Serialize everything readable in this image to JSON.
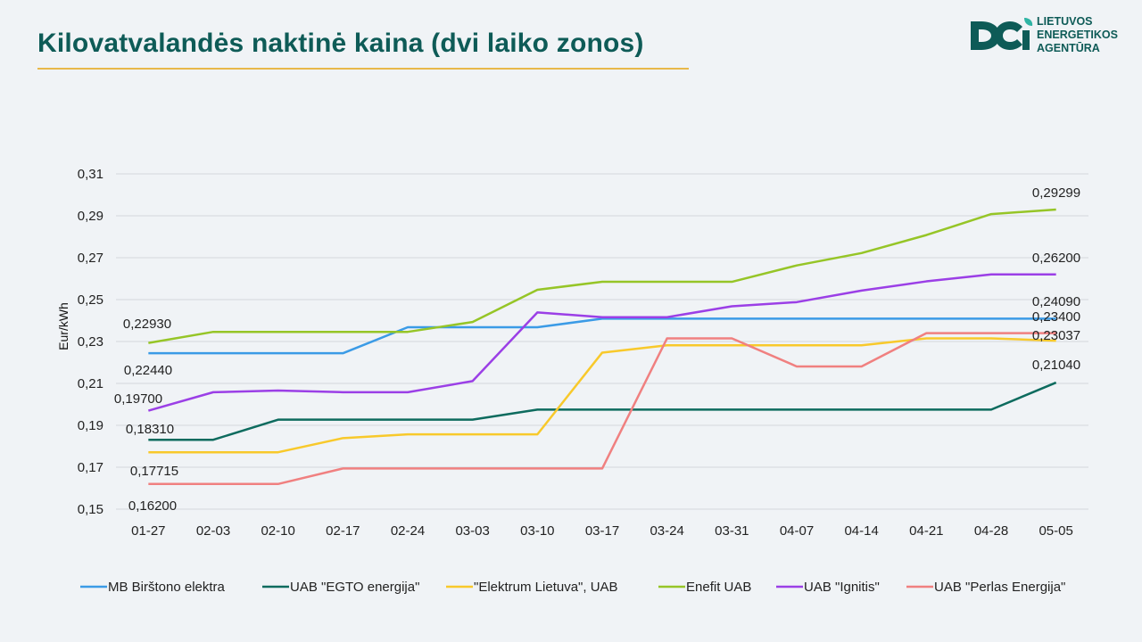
{
  "header": {
    "title": "Kilovatvalandės naktinė kaina (dvi laiko zonos)"
  },
  "logo": {
    "line1": "LIETUVOS",
    "line2": "ENERGETIKOS",
    "line3": "AGENTŪRA",
    "color": "#0e5b57",
    "accent": "#2fb4a4"
  },
  "chart_data": {
    "type": "line",
    "title": "",
    "ylabel": "Eur/kWh",
    "xlabel": "",
    "ylim": [
      0.15,
      0.31
    ],
    "yticks": [
      0.15,
      0.17,
      0.19,
      0.21,
      0.23,
      0.25,
      0.27,
      0.29,
      0.31
    ],
    "ytick_labels": [
      "0,15",
      "0,17",
      "0,19",
      "0,21",
      "0,23",
      "0,25",
      "0,27",
      "0,29",
      "0,31"
    ],
    "grid": true,
    "legend": "bottom",
    "categories": [
      "01-27",
      "02-03",
      "02-10",
      "02-17",
      "02-24",
      "03-03",
      "03-10",
      "03-17",
      "03-24",
      "03-31",
      "04-07",
      "04-14",
      "04-21",
      "04-28",
      "05-05"
    ],
    "series": [
      {
        "name": "MB Birštono elektra",
        "color": "#3b9be6",
        "values": [
          0.2244,
          0.2244,
          0.2244,
          0.2244,
          0.2368,
          0.2368,
          0.2368,
          0.2409,
          0.2409,
          0.2409,
          0.2409,
          0.2409,
          0.2409,
          0.2409,
          0.2409
        ],
        "labels": [
          {
            "index": 0,
            "text": "0,22440"
          },
          {
            "index": 14,
            "text": "0,24090"
          }
        ]
      },
      {
        "name": "UAB \"EGTO energija\"",
        "color": "#0d6b5e",
        "values": [
          0.1831,
          0.1831,
          0.1927,
          0.1927,
          0.1927,
          0.1927,
          0.1975,
          0.1975,
          0.1975,
          0.1975,
          0.1975,
          0.1975,
          0.1975,
          0.1975,
          0.2104
        ],
        "labels": [
          {
            "index": 0,
            "text": "0,18310"
          },
          {
            "index": 14,
            "text": "0,21040"
          }
        ]
      },
      {
        "name": "\"Elektrum Lietuva\", UAB",
        "color": "#f8c92b",
        "values": [
          0.17715,
          0.17715,
          0.17715,
          0.1839,
          0.1857,
          0.1857,
          0.1857,
          0.2247,
          0.2282,
          0.2282,
          0.2282,
          0.2282,
          0.2315,
          0.2315,
          0.23037
        ],
        "labels": [
          {
            "index": 0,
            "text": "0,17715"
          },
          {
            "index": 14,
            "text": "0,23037"
          }
        ]
      },
      {
        "name": "Enefit UAB",
        "color": "#96c527",
        "values": [
          0.2293,
          0.2346,
          0.2346,
          0.2346,
          0.2346,
          0.2393,
          0.2547,
          0.2585,
          0.2585,
          0.2585,
          0.2663,
          0.2722,
          0.2808,
          0.2908,
          0.29299
        ],
        "labels": [
          {
            "index": 0,
            "text": "0,22930"
          },
          {
            "index": 14,
            "text": "0,29299"
          }
        ]
      },
      {
        "name": "UAB \"Ignitis\"",
        "color": "#9b3fe6",
        "values": [
          0.197,
          0.2058,
          0.2066,
          0.2058,
          0.2058,
          0.2111,
          0.2439,
          0.2416,
          0.2416,
          0.2468,
          0.2488,
          0.2543,
          0.2587,
          0.262,
          0.262
        ],
        "labels": [
          {
            "index": 0,
            "text": "0,19700"
          },
          {
            "index": 14,
            "text": "0,26200"
          }
        ]
      },
      {
        "name": "UAB \"Perlas Energija\"",
        "color": "#f08080",
        "values": [
          0.162,
          0.162,
          0.162,
          0.1694,
          0.1694,
          0.1694,
          0.1694,
          0.1694,
          0.2315,
          0.2315,
          0.2181,
          0.2181,
          0.234,
          0.234,
          0.234
        ],
        "labels": [
          {
            "index": 0,
            "text": "0,16200"
          },
          {
            "index": 14,
            "text": "0,23400"
          }
        ]
      }
    ]
  }
}
